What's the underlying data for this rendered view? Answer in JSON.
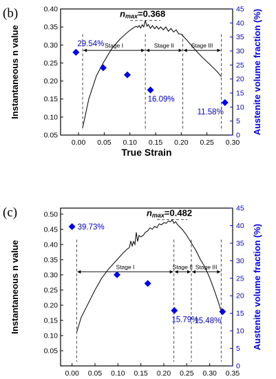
{
  "chart_data": [
    {
      "type": "line",
      "panel_label": "(b)",
      "xlabel": "True Strain",
      "ylabel_left": "Instantaneous n value",
      "ylabel_right": "Austenite volume fraction (%)",
      "xlim": [
        -0.035,
        0.3
      ],
      "ylim_left": [
        0.05,
        0.4
      ],
      "ylim_right": [
        0,
        45
      ],
      "xticks": [
        "0.00",
        "0.05",
        "0.10",
        "0.15",
        "0.20",
        "0.25",
        "0.30"
      ],
      "xtick_values": [
        0.0,
        0.05,
        0.1,
        0.15,
        0.2,
        0.25,
        0.3
      ],
      "yticks_left": [
        "0.05",
        "0.10",
        "0.15",
        "0.20",
        "0.25",
        "0.30",
        "0.35",
        "0.40"
      ],
      "ytick_values_left": [
        0.05,
        0.1,
        0.15,
        0.2,
        0.25,
        0.3,
        0.35,
        0.4
      ],
      "yticks_right": [
        "0",
        "5",
        "10",
        "15",
        "20",
        "25",
        "30",
        "35",
        "40",
        "45"
      ],
      "ytick_values_right": [
        0,
        5,
        10,
        15,
        20,
        25,
        30,
        35,
        40,
        45
      ],
      "nmax_prefix": "n",
      "nmax_sub": "max",
      "nmax_value": "=0.368",
      "nmax_x": 0.13,
      "nmax_y": 0.368,
      "n_curve": [
        [
          0.008,
          0.07
        ],
        [
          0.02,
          0.15
        ],
        [
          0.035,
          0.215
        ],
        [
          0.05,
          0.255
        ],
        [
          0.065,
          0.29
        ],
        [
          0.08,
          0.315
        ],
        [
          0.095,
          0.335
        ],
        [
          0.105,
          0.346
        ],
        [
          0.112,
          0.352
        ],
        [
          0.115,
          0.349
        ],
        [
          0.118,
          0.354
        ],
        [
          0.121,
          0.347
        ],
        [
          0.124,
          0.356
        ],
        [
          0.127,
          0.35
        ],
        [
          0.13,
          0.368
        ],
        [
          0.133,
          0.352
        ],
        [
          0.136,
          0.357
        ],
        [
          0.14,
          0.346
        ],
        [
          0.144,
          0.354
        ],
        [
          0.148,
          0.345
        ],
        [
          0.152,
          0.352
        ],
        [
          0.156,
          0.344
        ],
        [
          0.16,
          0.35
        ],
        [
          0.165,
          0.342
        ],
        [
          0.17,
          0.35
        ],
        [
          0.175,
          0.338
        ],
        [
          0.18,
          0.346
        ],
        [
          0.185,
          0.336
        ],
        [
          0.19,
          0.342
        ],
        [
          0.195,
          0.331
        ],
        [
          0.2,
          0.33
        ],
        [
          0.21,
          0.315
        ],
        [
          0.225,
          0.29
        ],
        [
          0.24,
          0.267
        ],
        [
          0.255,
          0.247
        ],
        [
          0.27,
          0.226
        ],
        [
          0.278,
          0.212
        ]
      ],
      "austenite_points": [
        [
          -0.005,
          29.54
        ],
        [
          0.048,
          24
        ],
        [
          0.095,
          21.5
        ],
        [
          0.14,
          16.09
        ],
        [
          0.285,
          11.58
        ]
      ],
      "austenite_labels": [
        {
          "text": "29.54%",
          "x": -0.005,
          "y": 29.54,
          "pos": "above-right"
        },
        {
          "text": "16.09%",
          "x": 0.14,
          "y": 16.09,
          "pos": "below"
        },
        {
          "text": "11.58%",
          "x": 0.285,
          "y": 11.58,
          "pos": "below-left"
        }
      ],
      "stage_bounds": [
        0.008,
        0.13,
        0.203,
        0.278
      ],
      "stage_arrow_y": 0.285,
      "stages": [
        "Stage I",
        "Stage II",
        "Stage III"
      ]
    },
    {
      "type": "line",
      "panel_label": "(c)",
      "xlabel": "True Strain",
      "ylabel_left": "Instantaneous n value",
      "ylabel_right": "Austenite volume fraction (%)",
      "xlim": [
        -0.025,
        0.35
      ],
      "ylim_left": [
        0.0,
        0.52
      ],
      "ylim_right": [
        0,
        45
      ],
      "xticks": [
        "0.00",
        "0.05",
        "0.10",
        "0.15",
        "0.20",
        "0.25",
        "0.30",
        "0.35"
      ],
      "xtick_values": [
        0.0,
        0.05,
        0.1,
        0.15,
        0.2,
        0.25,
        0.3,
        0.35
      ],
      "yticks_left": [
        "0.05",
        "0.10",
        "0.15",
        "0.20",
        "0.25",
        "0.30",
        "0.35",
        "0.40",
        "0.45",
        "0.50"
      ],
      "ytick_values_left": [
        0.05,
        0.1,
        0.15,
        0.2,
        0.25,
        0.3,
        0.35,
        0.4,
        0.45,
        0.5
      ],
      "yticks_right": [
        "0",
        "5",
        "10",
        "15",
        "20",
        "25",
        "30",
        "35",
        "40",
        "45"
      ],
      "ytick_values_right": [
        0,
        5,
        10,
        15,
        20,
        25,
        30,
        35,
        40,
        45
      ],
      "nmax_prefix": "n",
      "nmax_sub": "max",
      "nmax_value": "=0.482",
      "nmax_x": 0.218,
      "nmax_y": 0.482,
      "n_curve": [
        [
          0.01,
          0.11
        ],
        [
          0.02,
          0.16
        ],
        [
          0.035,
          0.205
        ],
        [
          0.05,
          0.25
        ],
        [
          0.065,
          0.29
        ],
        [
          0.08,
          0.32
        ],
        [
          0.095,
          0.345
        ],
        [
          0.11,
          0.37
        ],
        [
          0.12,
          0.385
        ],
        [
          0.125,
          0.39
        ],
        [
          0.128,
          0.412
        ],
        [
          0.131,
          0.395
        ],
        [
          0.134,
          0.41
        ],
        [
          0.137,
          0.4
        ],
        [
          0.14,
          0.44
        ],
        [
          0.143,
          0.41
        ],
        [
          0.146,
          0.43
        ],
        [
          0.15,
          0.425
        ],
        [
          0.155,
          0.43
        ],
        [
          0.16,
          0.44
        ],
        [
          0.165,
          0.445
        ],
        [
          0.17,
          0.455
        ],
        [
          0.175,
          0.45
        ],
        [
          0.18,
          0.46
        ],
        [
          0.185,
          0.455
        ],
        [
          0.19,
          0.468
        ],
        [
          0.195,
          0.465
        ],
        [
          0.2,
          0.472
        ],
        [
          0.205,
          0.47
        ],
        [
          0.21,
          0.477
        ],
        [
          0.215,
          0.475
        ],
        [
          0.218,
          0.482
        ],
        [
          0.222,
          0.47
        ],
        [
          0.226,
          0.475
        ],
        [
          0.23,
          0.465
        ],
        [
          0.24,
          0.45
        ],
        [
          0.25,
          0.43
        ],
        [
          0.26,
          0.405
        ],
        [
          0.27,
          0.38
        ],
        [
          0.28,
          0.35
        ],
        [
          0.29,
          0.325
        ],
        [
          0.3,
          0.29
        ],
        [
          0.31,
          0.25
        ],
        [
          0.32,
          0.205
        ],
        [
          0.325,
          0.18
        ]
      ],
      "austenite_points": [
        [
          0.0,
          39.73
        ],
        [
          0.098,
          26
        ],
        [
          0.165,
          23.5
        ],
        [
          0.223,
          15.79
        ],
        [
          0.328,
          15.48
        ]
      ],
      "austenite_labels": [
        {
          "text": "39.73%",
          "x": 0.0,
          "y": 39.73,
          "pos": "right"
        },
        {
          "text": "15.79%",
          "x": 0.223,
          "y": 15.79,
          "pos": "below"
        },
        {
          "text": "15.48%",
          "x": 0.328,
          "y": 15.48,
          "pos": "below-left"
        }
      ],
      "stage_bounds": [
        0.01,
        0.222,
        0.26,
        0.325
      ],
      "stage_arrow_y": 0.31,
      "stages": [
        "Stage I",
        "Stage II",
        "Stage III"
      ]
    }
  ]
}
